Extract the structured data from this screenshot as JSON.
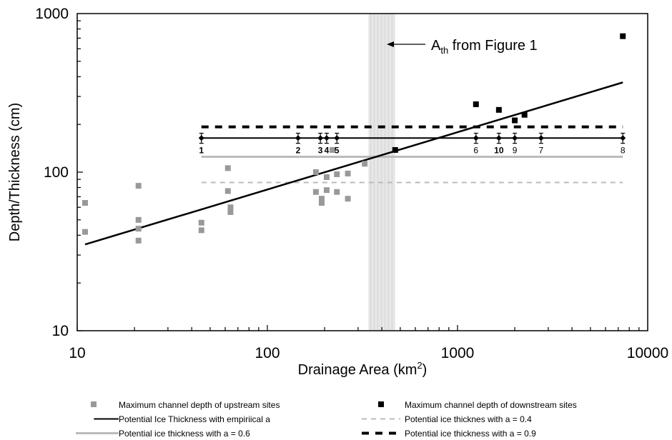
{
  "chart_data": {
    "type": "scatter",
    "xscale": "log",
    "yscale": "log",
    "xlim": [
      10,
      10000
    ],
    "ylim": [
      10,
      1000
    ],
    "xticks": [
      "10",
      "100",
      "1000",
      "10000"
    ],
    "yticks": [
      "10",
      "100",
      "1000"
    ],
    "xlabel": "Drainage Area (km",
    "xlabel_sup": "2",
    "xlabel_close": ")",
    "ylabel": "Depth/Thickness (cm)",
    "grid": false,
    "legend_position": "bottom",
    "colors": {
      "upstream": "#999999",
      "downstream": "#000000",
      "empirical": "#000000",
      "a04": "#bbbbbb",
      "a06": "#bbbbbb",
      "a09": "#000000",
      "threshold_band": "#e6e6e6"
    },
    "threshold": {
      "band": [
        340,
        470
      ],
      "label_main": "A",
      "label_sub": "th",
      "label_rest": " from Figure 1"
    },
    "upstream_sites": {
      "name": "Maximum channel depth of upstream sites",
      "points": [
        {
          "x": 11,
          "y": 64
        },
        {
          "x": 11,
          "y": 42
        },
        {
          "x": 21,
          "y": 82
        },
        {
          "x": 21,
          "y": 50
        },
        {
          "x": 21,
          "y": 44
        },
        {
          "x": 21,
          "y": 37
        },
        {
          "x": 45,
          "y": 48
        },
        {
          "x": 45,
          "y": 43
        },
        {
          "x": 62,
          "y": 106
        },
        {
          "x": 62,
          "y": 76
        },
        {
          "x": 64,
          "y": 60
        },
        {
          "x": 64,
          "y": 56
        },
        {
          "x": 180,
          "y": 100
        },
        {
          "x": 180,
          "y": 75
        },
        {
          "x": 193,
          "y": 68
        },
        {
          "x": 193,
          "y": 64
        },
        {
          "x": 205,
          "y": 93
        },
        {
          "x": 205,
          "y": 77
        },
        {
          "x": 220,
          "y": 138
        },
        {
          "x": 232,
          "y": 97
        },
        {
          "x": 232,
          "y": 75
        },
        {
          "x": 265,
          "y": 98
        },
        {
          "x": 265,
          "y": 68
        },
        {
          "x": 325,
          "y": 113
        }
      ]
    },
    "downstream_sites": {
      "name": "Maximum channel depth of downstream sites",
      "points": [
        {
          "x": 470,
          "y": 138
        },
        {
          "x": 1250,
          "y": 268
        },
        {
          "x": 1650,
          "y": 247
        },
        {
          "x": 2000,
          "y": 212
        },
        {
          "x": 2250,
          "y": 230
        },
        {
          "x": 7400,
          "y": 720
        }
      ]
    },
    "empirical_ice": {
      "name": "Potential Ice Thickness with empiriical a",
      "y": 164,
      "error": 12,
      "points": [
        {
          "x": 45,
          "label": "1"
        },
        {
          "x": 145,
          "label": "2"
        },
        {
          "x": 190,
          "label": "3"
        },
        {
          "x": 205,
          "label": "4"
        },
        {
          "x": 232,
          "label": "5"
        },
        {
          "x": 1250,
          "label": "6"
        },
        {
          "x": 1650,
          "label": "10"
        },
        {
          "x": 2000,
          "label": "9"
        },
        {
          "x": 2750,
          "label": "7"
        },
        {
          "x": 7400,
          "label": "8"
        }
      ]
    },
    "ice_a04": {
      "name": "Potential ice thicknes with a = 0.4",
      "y": 86,
      "x": [
        45,
        7400
      ]
    },
    "ice_a06": {
      "name": "Potential ice thickness with a = 0.6",
      "y": 125,
      "x": [
        45,
        7400
      ]
    },
    "ice_a09": {
      "name": "Potential ice thickness with a = 0.9",
      "y": 193,
      "x": [
        45,
        7400
      ]
    },
    "trend_line": {
      "x": [
        11,
        7400
      ],
      "y": [
        35,
        368
      ]
    }
  }
}
